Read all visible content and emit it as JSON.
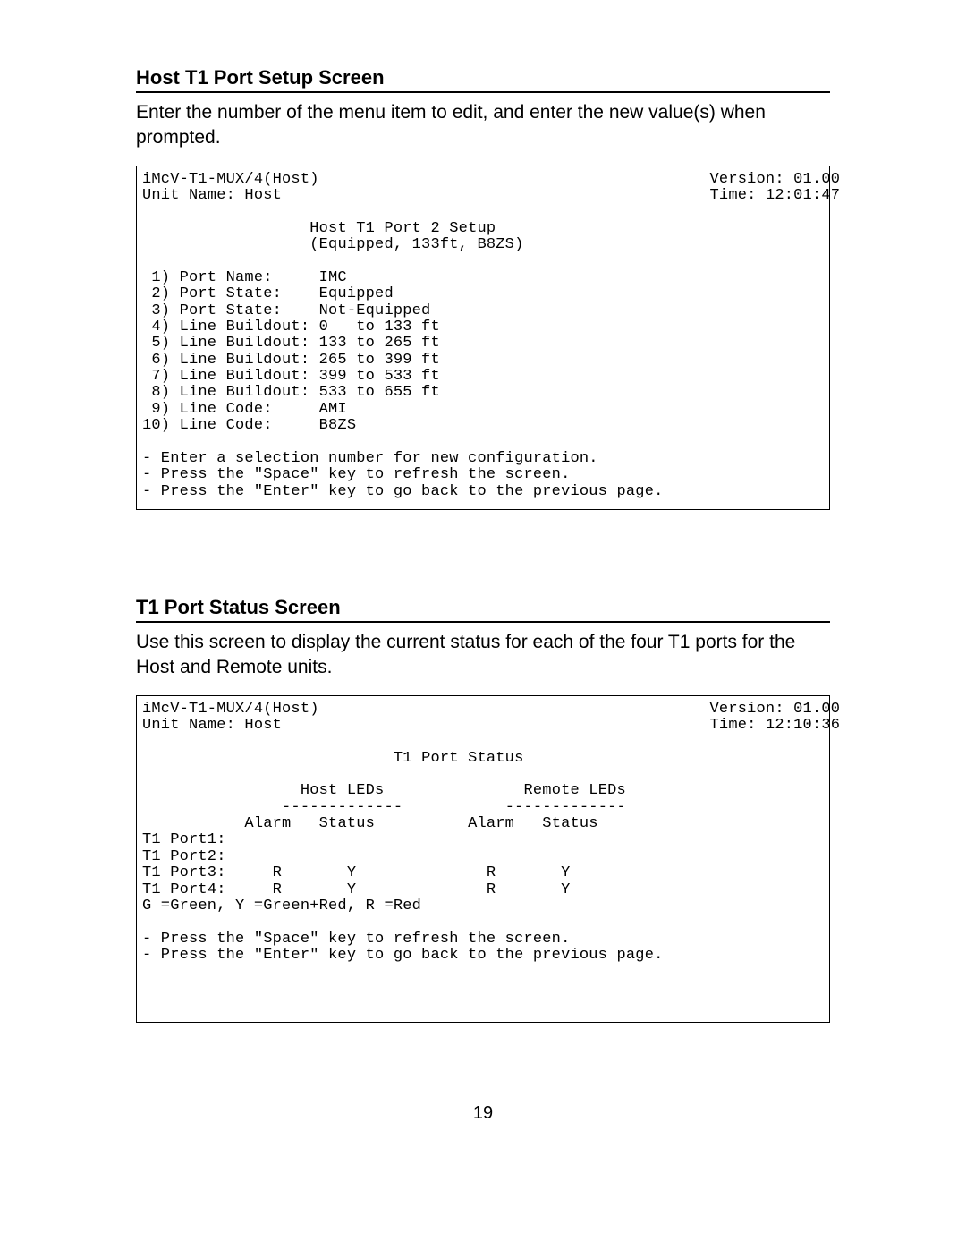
{
  "section1": {
    "heading": "Host T1 Port Setup Screen",
    "intro": "Enter the number of the menu item to edit, and enter the new value(s) when prompted."
  },
  "screen1": {
    "device": "iMcV-T1-MUX/4(Host)",
    "version_label": "Version: 01.00",
    "unit_name": "Unit Name: Host",
    "time_label": "Time: 12:01:47",
    "title1": "Host T1 Port 2 Setup",
    "title2": "(Equipped, 133ft, B8ZS)",
    "menu": {
      "i1": " 1) Port Name:     IMC",
      "i2": " 2) Port State:    Equipped",
      "i3": " 3) Port State:    Not-Equipped",
      "i4": " 4) Line Buildout: 0   to 133 ft",
      "i5": " 5) Line Buildout: 133 to 265 ft",
      "i6": " 6) Line Buildout: 265 to 399 ft",
      "i7": " 7) Line Buildout: 399 to 533 ft",
      "i8": " 8) Line Buildout: 533 to 655 ft",
      "i9": " 9) Line Code:     AMI",
      "i10": "10) Line Code:     B8ZS"
    },
    "help1": "- Enter a selection number for new configuration.",
    "help2": "- Press the \"Space\" key to refresh the screen.",
    "help3": "- Press the \"Enter\" key to go back to the previous page."
  },
  "section2": {
    "heading": "T1 Port Status Screen",
    "intro": "Use this screen to display the current status for each of the four T1 ports for the Host and Remote units."
  },
  "screen2": {
    "device": "iMcV-T1-MUX/4(Host)",
    "version_label": "Version: 01.00",
    "unit_name": "Unit Name: Host",
    "time_label": "Time: 12:10:36",
    "title": "T1 Port Status",
    "hdr_host": "Host LEDs",
    "hdr_remote": "Remote LEDs",
    "dash": "-------------",
    "cols_left": "Alarm   Status",
    "cols_right": "Alarm   Status",
    "row1": "T1 Port1:",
    "row2": "T1 Port2:",
    "row3": "T1 Port3:     R       Y              R       Y",
    "row4": "T1 Port4:     R       Y              R       Y",
    "legend": "G =Green, Y =Green+Red, R =Red",
    "help1": "- Press the \"Space\" key to refresh the screen.",
    "help2": "- Press the \"Enter\" key to go back to the previous page."
  },
  "page_number": "19"
}
